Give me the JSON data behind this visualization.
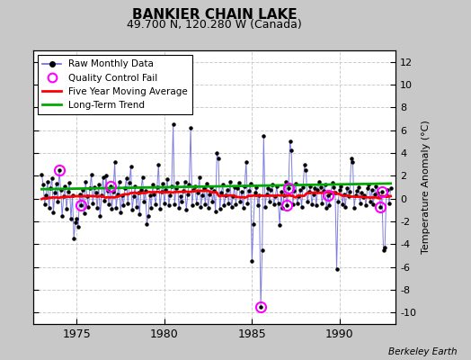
{
  "title": "BANKIER CHAIN LAKE",
  "subtitle": "49.700 N, 120.280 W (Canada)",
  "ylabel": "Temperature Anomaly (°C)",
  "credit": "Berkeley Earth",
  "xlim": [
    1972.5,
    1993.2
  ],
  "ylim": [
    -11,
    13
  ],
  "yticks": [
    -10,
    -8,
    -6,
    -4,
    -2,
    0,
    2,
    4,
    6,
    8,
    10,
    12
  ],
  "xticks": [
    1975,
    1980,
    1985,
    1990
  ],
  "fig_bg_color": "#c8c8c8",
  "plot_bg": "#ffffff",
  "grid_color": "#cccccc",
  "line_color": "#6666dd",
  "marker_color": "black",
  "ma_color": "red",
  "trend_color": "#00aa00",
  "qc_color": "magenta",
  "start_year": 1973,
  "raw_data": [
    2.1,
    1.2,
    -0.5,
    0.3,
    1.5,
    -0.8,
    0.9,
    1.8,
    -1.2,
    0.5,
    1.3,
    -0.3,
    2.5,
    0.8,
    -1.5,
    0.2,
    1.1,
    -0.9,
    0.6,
    1.4,
    -1.8,
    0.3,
    -3.5,
    -2.1,
    -1.8,
    -2.5,
    0.4,
    -0.6,
    0.8,
    -1.3,
    1.5,
    0.2,
    -0.7,
    0.9,
    2.1,
    -0.4,
    1.0,
    0.5,
    -0.8,
    1.2,
    -1.5,
    0.3,
    1.9,
    -0.2,
    2.0,
    0.7,
    -0.5,
    1.1,
    -0.9,
    0.6,
    3.2,
    -0.8,
    0.4,
    1.5,
    -1.2,
    0.3,
    -0.6,
    0.9,
    1.8,
    -0.4,
    1.4,
    2.8,
    -1.0,
    0.2,
    1.1,
    -0.7,
    0.5,
    -1.4,
    0.8,
    1.9,
    -0.3,
    0.7,
    -2.2,
    -1.5,
    0.3,
    -0.8,
    1.2,
    0.4,
    -0.5,
    1.0,
    3.0,
    -0.9,
    0.6,
    1.3,
    -0.4,
    0.8,
    1.7,
    -0.6,
    0.3,
    1.1,
    6.5,
    -0.5,
    0.9,
    1.4,
    -0.8,
    0.2,
    -0.3,
    0.7,
    1.5,
    -1.0,
    0.4,
    1.2,
    6.2,
    -0.6,
    0.8,
    1.1,
    -0.4,
    0.5,
    1.9,
    -0.7,
    0.3,
    0.9,
    -0.5,
    1.3,
    -0.8,
    0.4,
    1.0,
    -0.3,
    0.7,
    -1.1,
    4.0,
    3.5,
    -0.9,
    0.5,
    1.2,
    -0.6,
    0.3,
    0.8,
    -0.4,
    1.5,
    -0.7,
    0.2,
    1.0,
    -0.5,
    0.9,
    1.4,
    -0.3,
    0.6,
    -0.8,
    1.1,
    3.2,
    -0.4,
    0.7,
    1.3,
    -5.5,
    -2.2,
    0.5,
    1.0,
    -0.6,
    0.3,
    -9.5,
    -4.5,
    5.5,
    -0.7,
    0.4,
    0.9,
    -0.3,
    0.8,
    1.2,
    -0.5,
    0.2,
    1.1,
    -0.4,
    -2.3,
    0.6,
    -0.8,
    0.3,
    1.5,
    -0.6,
    0.9,
    5.0,
    4.2,
    -0.5,
    0.7,
    1.3,
    -0.4,
    0.2,
    0.8,
    -0.7,
    1.0,
    3.0,
    2.5,
    -0.3,
    0.6,
    1.1,
    -0.5,
    0.4,
    0.9,
    -0.6,
    0.8,
    1.5,
    1.0,
    -0.4,
    0.7,
    1.2,
    -0.8,
    0.3,
    -0.6,
    0.5,
    1.4,
    1.0,
    0.5,
    -6.2,
    -0.3,
    0.8,
    1.1,
    -0.5,
    0.4,
    -0.7,
    0.9,
    0.2,
    0.6,
    3.5,
    3.2,
    -0.8,
    0.3,
    0.7,
    1.0,
    -0.4,
    0.5,
    0.1,
    0.3,
    -0.6,
    0.9,
    1.2,
    -0.3,
    0.8,
    -0.5,
    0.4,
    1.1,
    0.5,
    0.2,
    -0.7,
    0.6,
    -4.5,
    -4.3,
    0.3,
    0.8,
    -0.4,
    0.9
  ],
  "qc_fail_indices": [
    12,
    27,
    47,
    150,
    168,
    169,
    196,
    232,
    233
  ],
  "trend_slope": 0.025,
  "trend_intercept": -48.5
}
